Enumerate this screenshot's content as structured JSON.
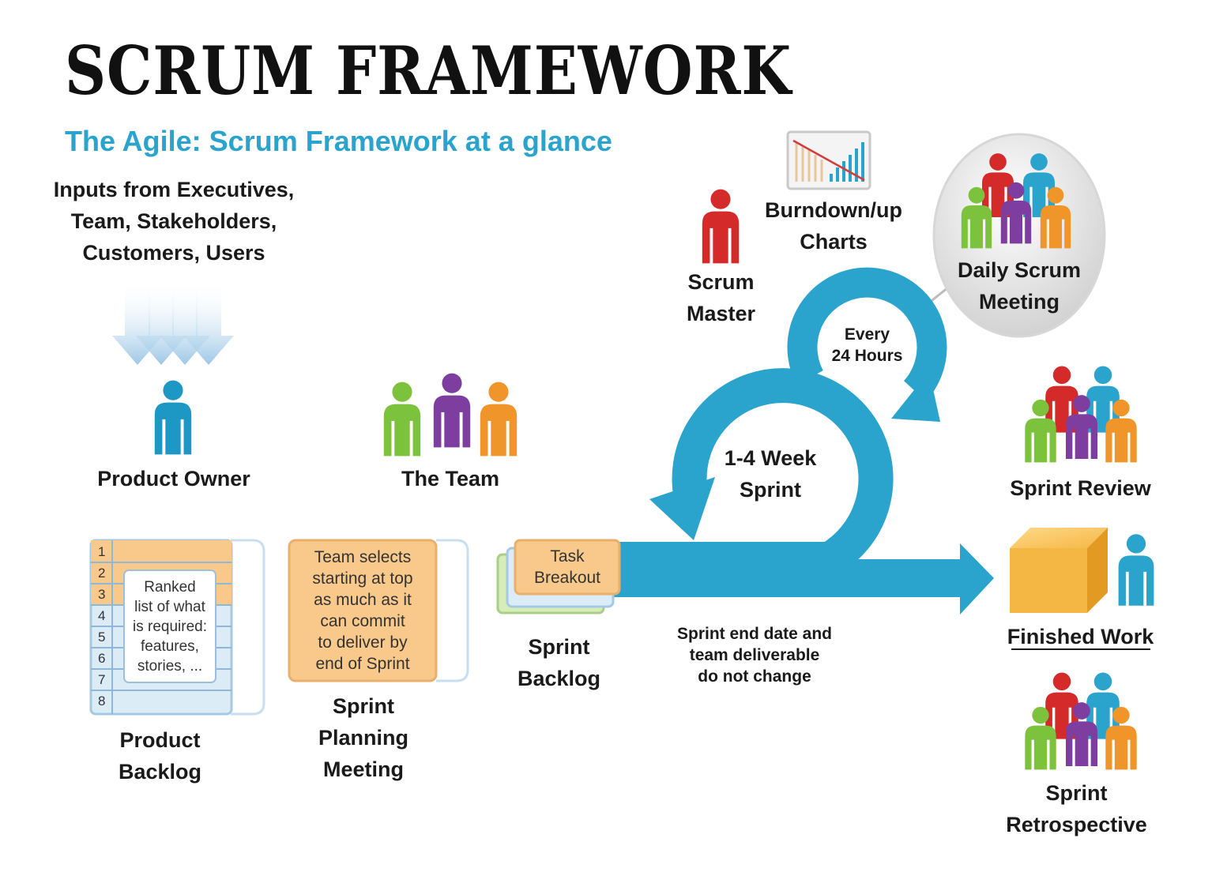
{
  "title": "SCRUM FRAMEWORK",
  "subtitle": "The Agile: Scrum Framework at a glance",
  "inputs_text": "Inputs from Executives,\nTeam, Stakeholders,\nCustomers, Users",
  "product_owner": "Product Owner",
  "the_team": "The Team",
  "scrum_master": "Scrum\nMaster",
  "burndown": "Burndown/up\nCharts",
  "daily_scrum": "Daily Scrum\nMeeting",
  "every_24": "Every\n24 Hours",
  "sprint_cycle": "1-4 Week\nSprint",
  "sprint_review": "Sprint Review",
  "finished_work": "Finished Work",
  "sprint_retro": "Sprint\nRetrospective",
  "product_backlog": "Product\nBacklog",
  "backlog_note": "Ranked\nlist of what\nis required:\nfeatures,\nstories, ...",
  "backlog_rows": [
    "1",
    "2",
    "3",
    "4",
    "5",
    "6",
    "7",
    "8"
  ],
  "planning_box": "Team selects\nstarting at top\nas much as it\ncan commit\nto deliver by\nend of Sprint",
  "planning_label": "Sprint\nPlanning\nMeeting",
  "task_breakout": "Task\nBreakout",
  "sprint_backlog": "Sprint\nBacklog",
  "sprint_end_note": "Sprint end date and\nteam deliverable\ndo not change",
  "colors": {
    "accent_blue": "#2aa3cd",
    "person_blue": "#1d98c4",
    "person_red": "#d42a2a",
    "person_green": "#7dc23c",
    "person_purple": "#7d3ea0",
    "person_orange": "#f0952a",
    "box_orange": "#f8c98b",
    "box_light_blue": "#dcecf7"
  }
}
